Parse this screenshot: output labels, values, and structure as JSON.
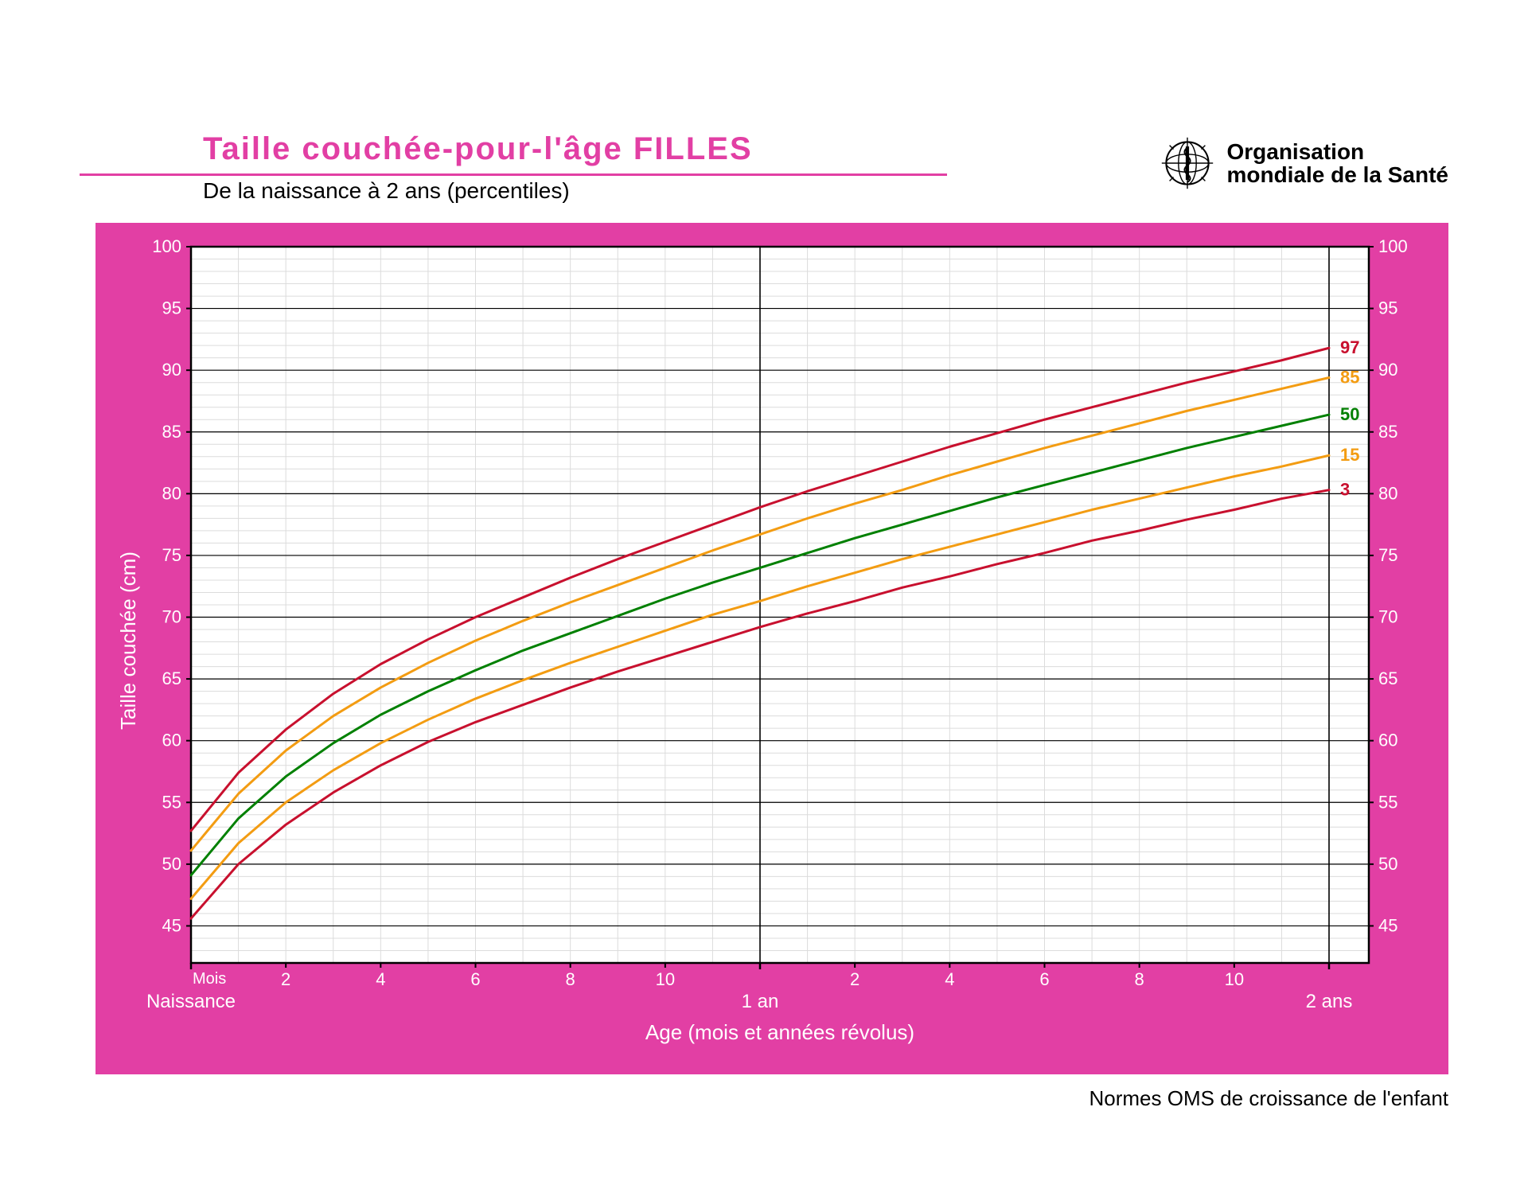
{
  "header": {
    "title": "Taille couchée-pour-l'âge  FILLES",
    "subtitle": "De la naissance à 2 ans (percentiles)",
    "title_color": "#e23fa4",
    "rule_color": "#e23fa4",
    "title_fontsize": 40,
    "subtitle_fontsize": 28
  },
  "logo": {
    "line1": "Organisation",
    "line2": "mondiale de la Santé"
  },
  "footer": {
    "text": "Normes OMS de croissance de l'enfant"
  },
  "chart": {
    "type": "line",
    "panel_color": "#e23fa4",
    "plot_background": "#ffffff",
    "grid_minor_color": "#dcdcdc",
    "grid_major_color": "#000000",
    "border_color": "#000000",
    "axis_label_color": "#ffffff",
    "tick_label_color": "#ffffff",
    "axis_label_fontsize": 26,
    "tick_label_fontsize": 22,
    "x": {
      "min": 0,
      "max": 24,
      "minor_step": 1,
      "major_at": [
        0,
        12,
        24
      ],
      "ticks_numeric": [
        2,
        4,
        6,
        8,
        10,
        14,
        16,
        18,
        20,
        22
      ],
      "ticks_numeric_labels": [
        "2",
        "4",
        "6",
        "8",
        "10",
        "2",
        "4",
        "6",
        "8",
        "10"
      ],
      "special_ticks": [
        {
          "at": 0,
          "label": "Naissance"
        },
        {
          "at": 12,
          "label": "1 an"
        },
        {
          "at": 24,
          "label": "2 ans"
        }
      ],
      "mois_label": "Mois",
      "axis_label": "Age (mois et années révolus)"
    },
    "y": {
      "min": 42,
      "max": 100,
      "minor_step": 1,
      "major_step": 5,
      "tick_step": 5,
      "ticks": [
        45,
        50,
        55,
        60,
        65,
        70,
        75,
        80,
        85,
        90,
        95,
        100
      ],
      "axis_label": "Taille couchée (cm)"
    },
    "line_width": 3,
    "series": [
      {
        "label": "97",
        "color": "#c8102e",
        "data": [
          52.7,
          57.4,
          60.9,
          63.8,
          66.2,
          68.2,
          70.0,
          71.6,
          73.2,
          74.7,
          76.1,
          77.5,
          78.9,
          80.2,
          81.4,
          82.6,
          83.8,
          84.9,
          86.0,
          87.0,
          88.0,
          89.0,
          89.9,
          90.8,
          91.8
        ]
      },
      {
        "label": "85",
        "color": "#f39c12",
        "data": [
          51.1,
          55.7,
          59.2,
          62.0,
          64.3,
          66.3,
          68.1,
          69.7,
          71.2,
          72.6,
          74.0,
          75.4,
          76.7,
          78.0,
          79.2,
          80.3,
          81.5,
          82.6,
          83.7,
          84.7,
          85.7,
          86.7,
          87.6,
          88.5,
          89.4
        ]
      },
      {
        "label": "50",
        "color": "#008000",
        "data": [
          49.1,
          53.7,
          57.1,
          59.8,
          62.1,
          64.0,
          65.7,
          67.3,
          68.7,
          70.1,
          71.5,
          72.8,
          74.0,
          75.2,
          76.4,
          77.5,
          78.6,
          79.7,
          80.7,
          81.7,
          82.7,
          83.7,
          84.6,
          85.5,
          86.4
        ]
      },
      {
        "label": "15",
        "color": "#f39c12",
        "data": [
          47.2,
          51.7,
          55.0,
          57.6,
          59.8,
          61.7,
          63.4,
          64.9,
          66.3,
          67.6,
          68.9,
          70.2,
          71.3,
          72.5,
          73.6,
          74.7,
          75.7,
          76.7,
          77.7,
          78.7,
          79.6,
          80.5,
          81.4,
          82.2,
          83.1
        ]
      },
      {
        "label": "3",
        "color": "#c8102e",
        "data": [
          45.6,
          50.0,
          53.2,
          55.8,
          58.0,
          59.9,
          61.5,
          62.9,
          64.3,
          65.6,
          66.8,
          68.0,
          69.2,
          70.3,
          71.3,
          72.4,
          73.3,
          74.3,
          75.2,
          76.2,
          77.0,
          77.9,
          78.7,
          79.6,
          80.3
        ]
      }
    ]
  }
}
